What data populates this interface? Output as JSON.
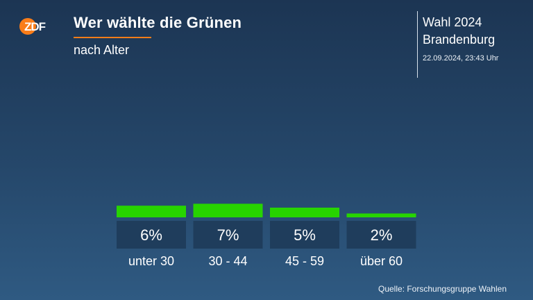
{
  "brand": {
    "logo_text": "ZDF",
    "logo_color": "#fa7d19"
  },
  "header": {
    "title": "Wer wählte die Grünen",
    "subtitle": "nach Alter",
    "accent_color": "#fa7d19"
  },
  "election": {
    "line1": "Wahl 2024",
    "line2": "Brandenburg",
    "timestamp": "22.09.2024, 23:43 Uhr"
  },
  "chart_data": {
    "type": "bar",
    "title": "Wer wählte die Grünen",
    "subtitle": "nach Alter",
    "categories": [
      "unter 30",
      "30 - 44",
      "45 - 59",
      "über 60"
    ],
    "values": [
      6,
      7,
      5,
      2
    ],
    "value_labels": [
      "6%",
      "7%",
      "5%",
      "2%"
    ],
    "unit": "%",
    "bar_color": "#27d400",
    "label_box_color": "#1f3d5c",
    "grid": false,
    "legend": "none"
  },
  "footer": {
    "source": "Quelle: Forschungsgruppe Wahlen"
  }
}
